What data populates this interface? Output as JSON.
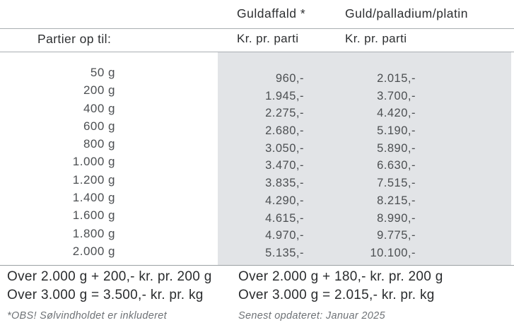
{
  "colors": {
    "panel_bg": "#e2e4e7",
    "rule_light": "#a9aeb2",
    "rule_bottom": "#9aa0a4",
    "heading_text": "#2d2f31",
    "value_text": "#4c4f52",
    "footnote_text": "#6e7276"
  },
  "header": {
    "row_label": "Partier op til:",
    "col2_title": "Guldaffald *",
    "col3_title": "Guld/palladium/platin",
    "col2_unit": "Kr. pr. parti",
    "col3_unit": "Kr. pr. parti"
  },
  "table": {
    "rows": [
      {
        "weight": "50 g",
        "guldaffald": "960,-",
        "guld_palladium_platin": "2.015,-"
      },
      {
        "weight": "200 g",
        "guldaffald": "1.945,-",
        "guld_palladium_platin": "3.700,-"
      },
      {
        "weight": "400 g",
        "guldaffald": "2.275,-",
        "guld_palladium_platin": "4.420,-"
      },
      {
        "weight": "600 g",
        "guldaffald": "2.680,-",
        "guld_palladium_platin": "5.190,-"
      },
      {
        "weight": "800 g",
        "guldaffald": "3.050,-",
        "guld_palladium_platin": "5.890,-"
      },
      {
        "weight": "1.000 g",
        "guldaffald": "3.470,-",
        "guld_palladium_platin": "6.630,-"
      },
      {
        "weight": "1.200 g",
        "guldaffald": "3.835,-",
        "guld_palladium_platin": "7.515,-"
      },
      {
        "weight": "1.400 g",
        "guldaffald": "4.290,-",
        "guld_palladium_platin": "8.215,-"
      },
      {
        "weight": "1.600 g",
        "guldaffald": "4.615,-",
        "guld_palladium_platin": "8.990,-"
      },
      {
        "weight": "1.800 g",
        "guldaffald": "4.970,-",
        "guld_palladium_platin": "9.775,-"
      },
      {
        "weight": "2.000 g",
        "guldaffald": "5.135,-",
        "guld_palladium_platin": "10.100,-"
      }
    ]
  },
  "footer": {
    "guldaffald_over_2000": "Over 2.000 g + 200,- kr. pr. 200 g",
    "guldaffald_over_3000": "Over 3.000 g = 3.500,- kr. pr. kg",
    "gpp_over_2000": "Over 2.000 g + 180,- kr. pr. 200 g",
    "gpp_over_3000": "Over 3.000 g = 2.015,- kr. pr. kg",
    "footnote_left": "*OBS! Sølvindholdet er inkluderet",
    "footnote_right": "Senest opdateret: Januar 2025"
  }
}
